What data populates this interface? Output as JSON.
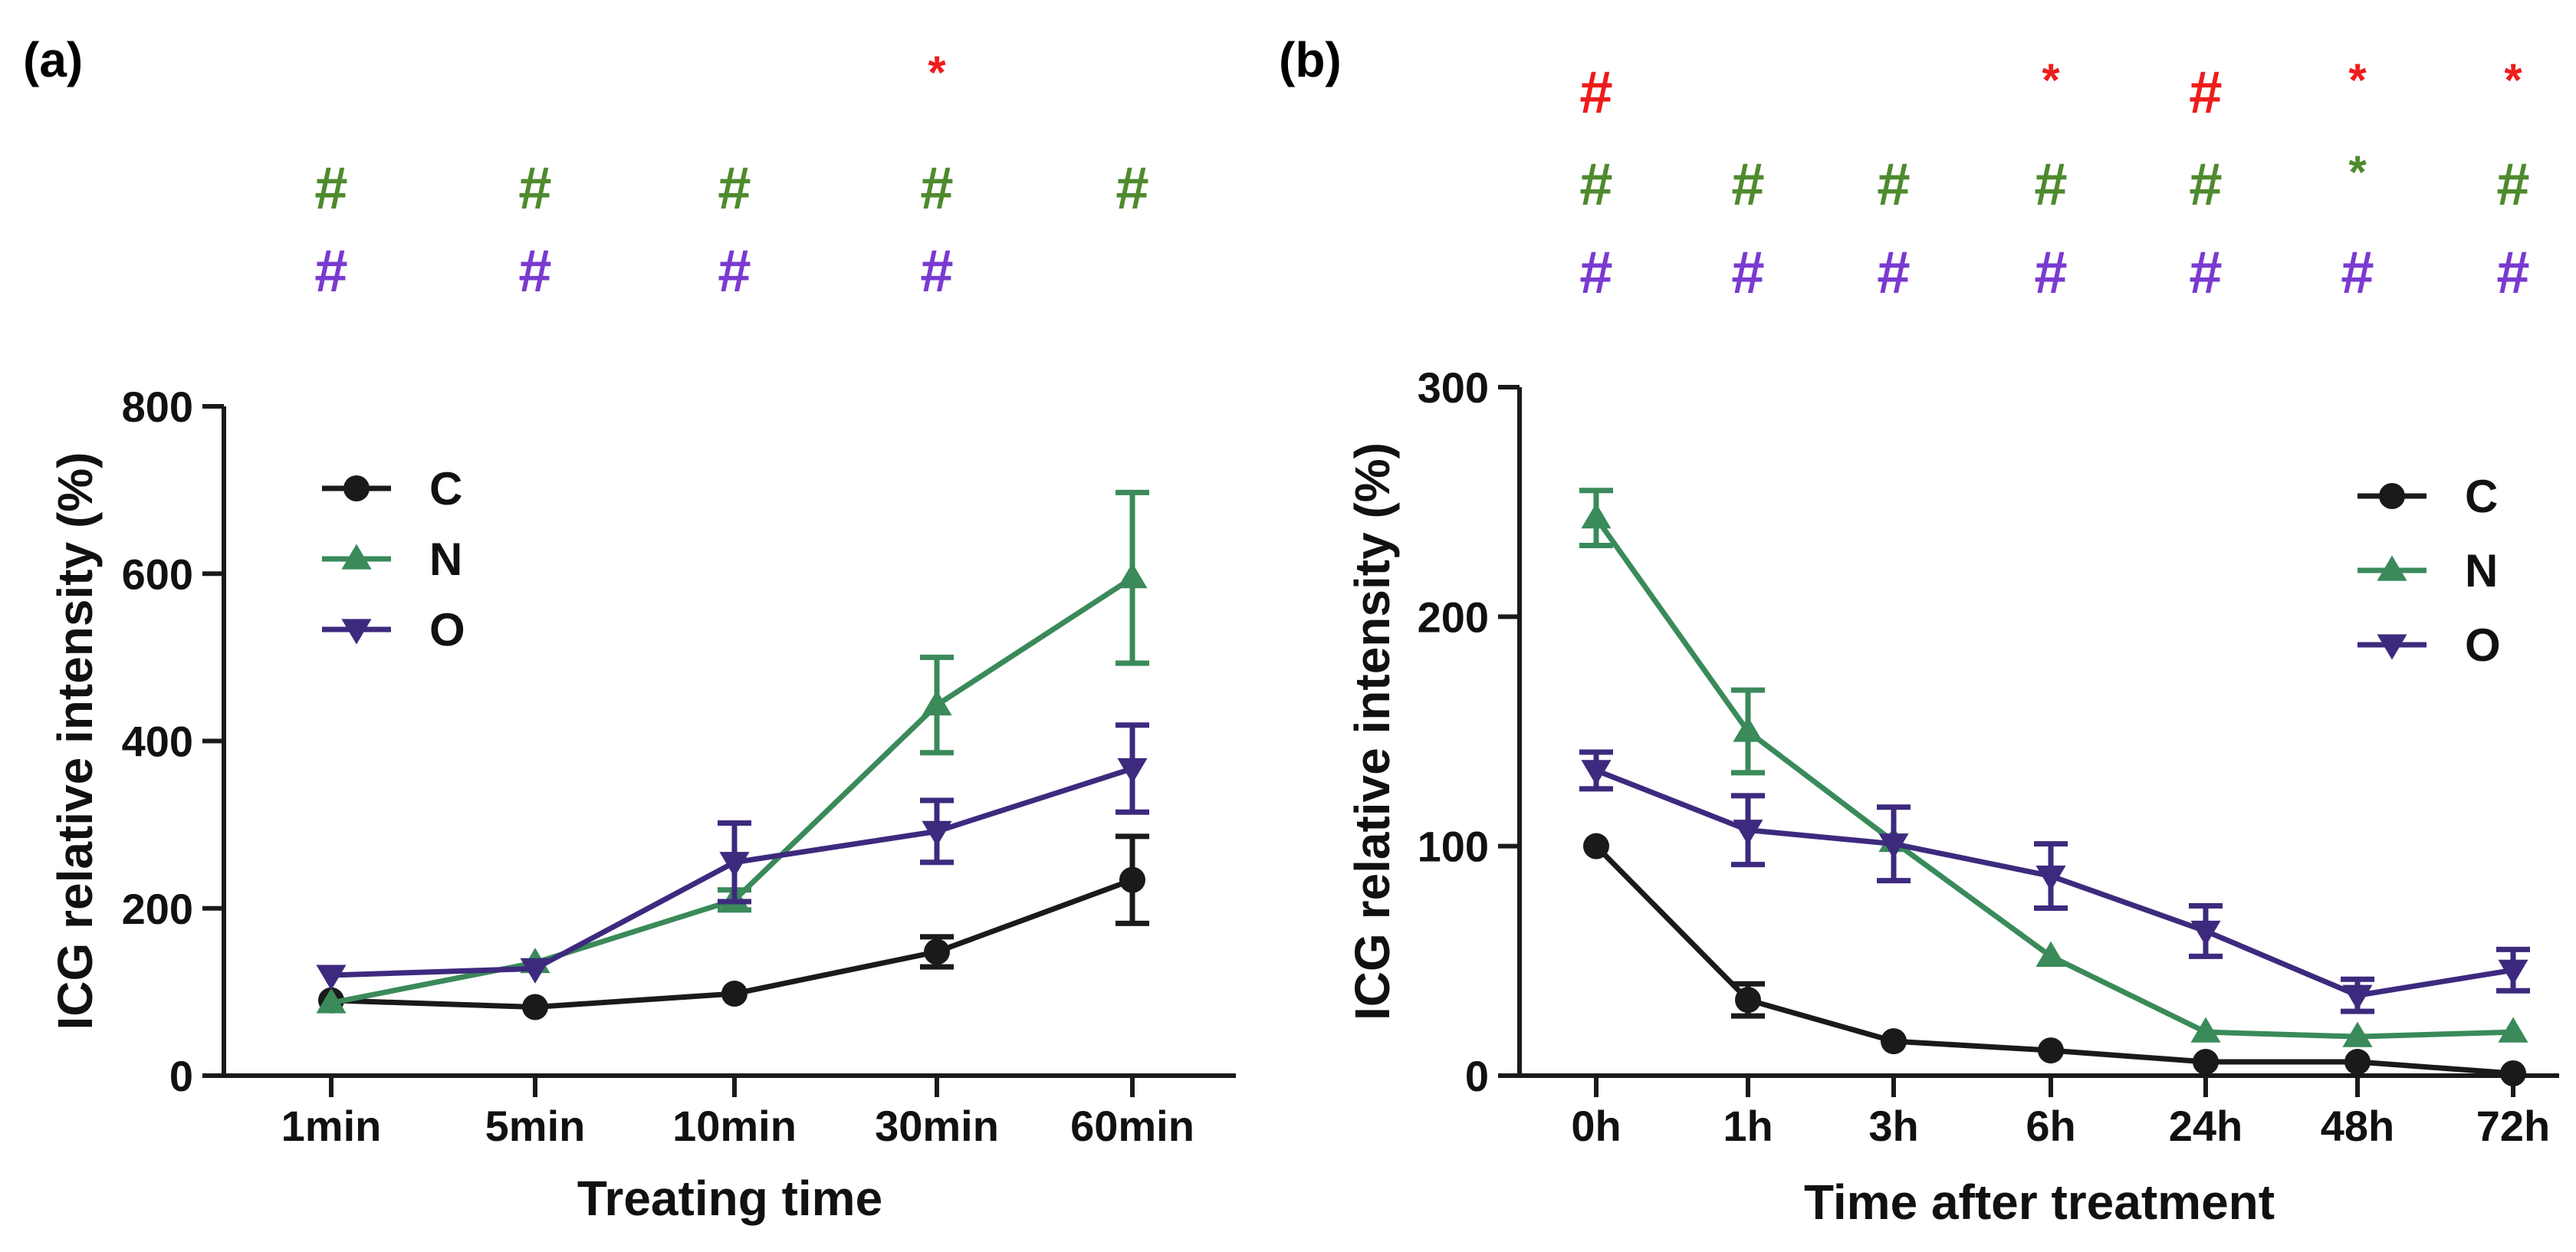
{
  "colors": {
    "C": "#1a1a1a",
    "N": "#3a8a5a",
    "O": "#3d2a7e",
    "red": "#ee1c1c",
    "green": "#4e8a2e",
    "purple": "#7a3ad0",
    "axis": "#1a1a1a"
  },
  "chart_data": [
    {
      "type": "line",
      "panel_label": "(a)",
      "title": "",
      "xlabel": "Treating time",
      "ylabel": "ICG relative intensity (%)",
      "categories": [
        "1min",
        "5min",
        "10min",
        "30min",
        "60min"
      ],
      "ylim": [
        0,
        800
      ],
      "yticks": [
        "0",
        "200",
        "400",
        "600",
        "800"
      ],
      "legend_position": "top-left",
      "series": [
        {
          "name": "C",
          "legend_label": "C",
          "marker": "circle",
          "values": [
            90,
            82,
            98,
            148,
            234
          ],
          "errors": [
            0,
            0,
            0,
            18,
            52
          ]
        },
        {
          "name": "N",
          "legend_label": "N",
          "marker": "triangle-up",
          "values": [
            87,
            135,
            210,
            443,
            595
          ],
          "errors": [
            0,
            0,
            12,
            57,
            102
          ]
        },
        {
          "name": "O",
          "legend_label": "O",
          "marker": "triangle-down",
          "values": [
            120,
            128,
            255,
            292,
            367
          ],
          "errors": [
            0,
            0,
            47,
            37,
            52
          ]
        }
      ],
      "annotations": {
        "red": [
          "",
          "",
          "",
          "*",
          ""
        ],
        "green": [
          "#",
          "#",
          "#",
          "#",
          "#"
        ],
        "purple": [
          "#",
          "#",
          "#",
          "#",
          ""
        ]
      }
    },
    {
      "type": "line",
      "panel_label": "(b)",
      "title": "",
      "xlabel": "Time after treatment",
      "ylabel": "ICG relative intensity (%)",
      "categories": [
        "0h",
        "1h",
        "3h",
        "6h",
        "24h",
        "48h",
        "72h"
      ],
      "ylim": [
        0,
        300
      ],
      "yticks": [
        "0",
        "100",
        "200",
        "300"
      ],
      "legend_position": "top-right",
      "series": [
        {
          "name": "C",
          "legend_label": "C",
          "marker": "circle",
          "values": [
            100,
            33,
            15,
            11,
            6,
            6,
            1
          ],
          "errors": [
            0,
            7,
            0,
            0,
            0,
            0,
            0
          ]
        },
        {
          "name": "N",
          "legend_label": "N",
          "marker": "triangle-up",
          "values": [
            243,
            150,
            102,
            52,
            19,
            17,
            19
          ],
          "errors": [
            12,
            18,
            0,
            0,
            0,
            0,
            0
          ]
        },
        {
          "name": "O",
          "legend_label": "O",
          "marker": "triangle-down",
          "values": [
            133,
            107,
            101,
            87,
            63,
            35,
            46
          ],
          "errors": [
            8,
            15,
            16,
            14,
            11,
            7,
            9
          ]
        }
      ],
      "annotations": {
        "red": [
          "#",
          "",
          "",
          "*",
          "#",
          "*",
          "*"
        ],
        "green": [
          "#",
          "#",
          "#",
          "#",
          "#",
          "*",
          "#"
        ],
        "purple": [
          "#",
          "#",
          "#",
          "#",
          "#",
          "#",
          "#"
        ]
      }
    }
  ]
}
